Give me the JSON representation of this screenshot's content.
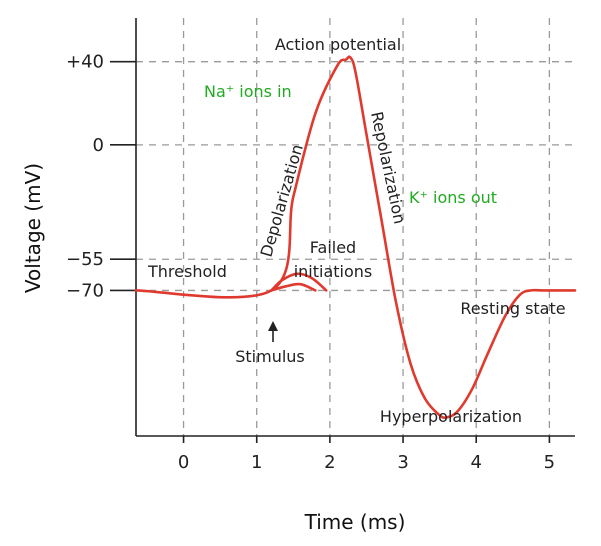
{
  "chart_data": {
    "type": "line",
    "title": "Action potential",
    "xlabel": "Time (ms)",
    "ylabel": "Voltage (mV)",
    "xlim": [
      -0.65,
      5.35
    ],
    "ylim": [
      -140,
      61
    ],
    "x_ticks": [
      0,
      1,
      2,
      3,
      4,
      5
    ],
    "x_tick_labels": [
      "0",
      "1",
      "2",
      "3",
      "4",
      "5"
    ],
    "y_ticks": [
      40,
      0,
      -55,
      -70
    ],
    "y_tick_labels": [
      "+40",
      "0",
      "−55",
      "−70"
    ],
    "grid": true,
    "series": [
      {
        "x": [
          -0.65,
          1.2,
          1.5,
          1.8,
          2.1,
          2.22,
          2.28,
          2.35,
          2.5,
          2.7,
          2.9,
          3.1,
          3.3,
          3.5,
          3.6,
          3.75,
          3.95,
          4.15,
          4.4,
          4.6,
          4.75,
          4.9,
          5.35
        ],
        "y": [
          -70,
          -70,
          -25,
          15,
          38,
          41,
          42,
          35,
          5,
          -35,
          -75,
          -105,
          -122,
          -130,
          -131,
          -128,
          -117,
          -101,
          -82,
          -72,
          -70,
          -70,
          -70
        ]
      }
    ],
    "failed_initiations": [
      {
        "x": [
          1.2,
          1.35,
          1.55,
          1.75,
          1.95
        ],
        "y": [
          -70,
          -65,
          -62,
          -64,
          -70
        ]
      },
      {
        "x": [
          1.2,
          1.4,
          1.6,
          1.8
        ],
        "y": [
          -70,
          -68,
          -67,
          -70
        ]
      }
    ],
    "colors": {
      "curve": "#e03a2f",
      "ion_labels": "#22aa22",
      "grid": "#9a9a9a"
    },
    "annotations": {
      "na_ions": "Na⁺ ions in",
      "k_ions": "K⁺ ions out",
      "depolarization": "Depolarization",
      "repolarization": "Repolarization",
      "threshold": "Threshold",
      "failed_initiations_1": "Failed",
      "failed_initiations_2": "initiations",
      "resting_state": "Resting state",
      "stimulus": "Stimulus",
      "hyperpolarization": "Hyperpolarization"
    }
  }
}
